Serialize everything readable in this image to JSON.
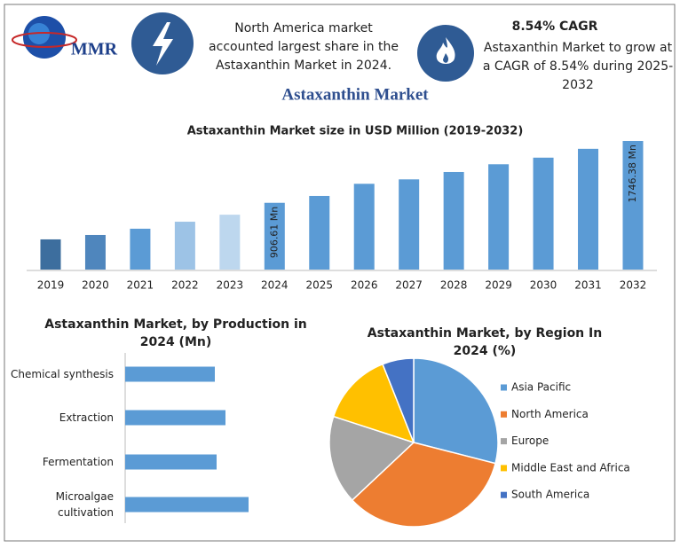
{
  "header": {
    "logo": "MMR",
    "note": "North America market accounted largest share in the Astaxanthin Market in 2024.",
    "cagr_title": "8.54% CAGR",
    "cagr_text": "Astaxanthin Market to grow at a CAGR of 8.54% during 2025-2032"
  },
  "title": "Astaxanthin Market",
  "chart_data": [
    {
      "type": "bar",
      "title": "Astaxanthin Market size in USD Million (2019-2032)",
      "categories": [
        "2019",
        "2020",
        "2021",
        "2022",
        "2023",
        "2024",
        "2025",
        "2026",
        "2027",
        "2028",
        "2029",
        "2030",
        "2031",
        "2032"
      ],
      "values": [
        410,
        470,
        555,
        650,
        745,
        906.61,
        1000,
        1165,
        1225,
        1325,
        1430,
        1520,
        1640,
        1746.38
      ],
      "value_labels": [
        null,
        null,
        null,
        null,
        null,
        "906.61 Mn",
        null,
        null,
        null,
        null,
        null,
        null,
        null,
        "1746.38 Mn"
      ],
      "colors": [
        "#3d6e9e",
        "#4f86bd",
        "#5b9bd5",
        "#9dc3e6",
        "#bdd7ee",
        "#5b9bd5",
        "#5b9bd5",
        "#5b9bd5",
        "#5b9bd5",
        "#5b9bd5",
        "#5b9bd5",
        "#5b9bd5",
        "#5b9bd5",
        "#5b9bd5"
      ]
    },
    {
      "type": "hbar",
      "title": "Astaxanthin Market, by Production in 2024 (Mn)",
      "categories": [
        "Chemical synthesis",
        "Extraction",
        "Fermentation",
        "Microalgae cultivation"
      ],
      "values": [
        101,
        113,
        103,
        139
      ],
      "color": "#5b9bd5"
    },
    {
      "type": "pie",
      "title": "Astaxanthin Market, by Region In 2024 (%)",
      "categories": [
        "Asia Pacific",
        "North America",
        "Europe",
        "Middle East and Africa",
        "South America"
      ],
      "values": [
        29,
        34,
        17,
        14,
        6
      ],
      "colors": [
        "#5b9bd5",
        "#ed7d31",
        "#a5a5a5",
        "#ffc000",
        "#4472c4"
      ]
    }
  ]
}
